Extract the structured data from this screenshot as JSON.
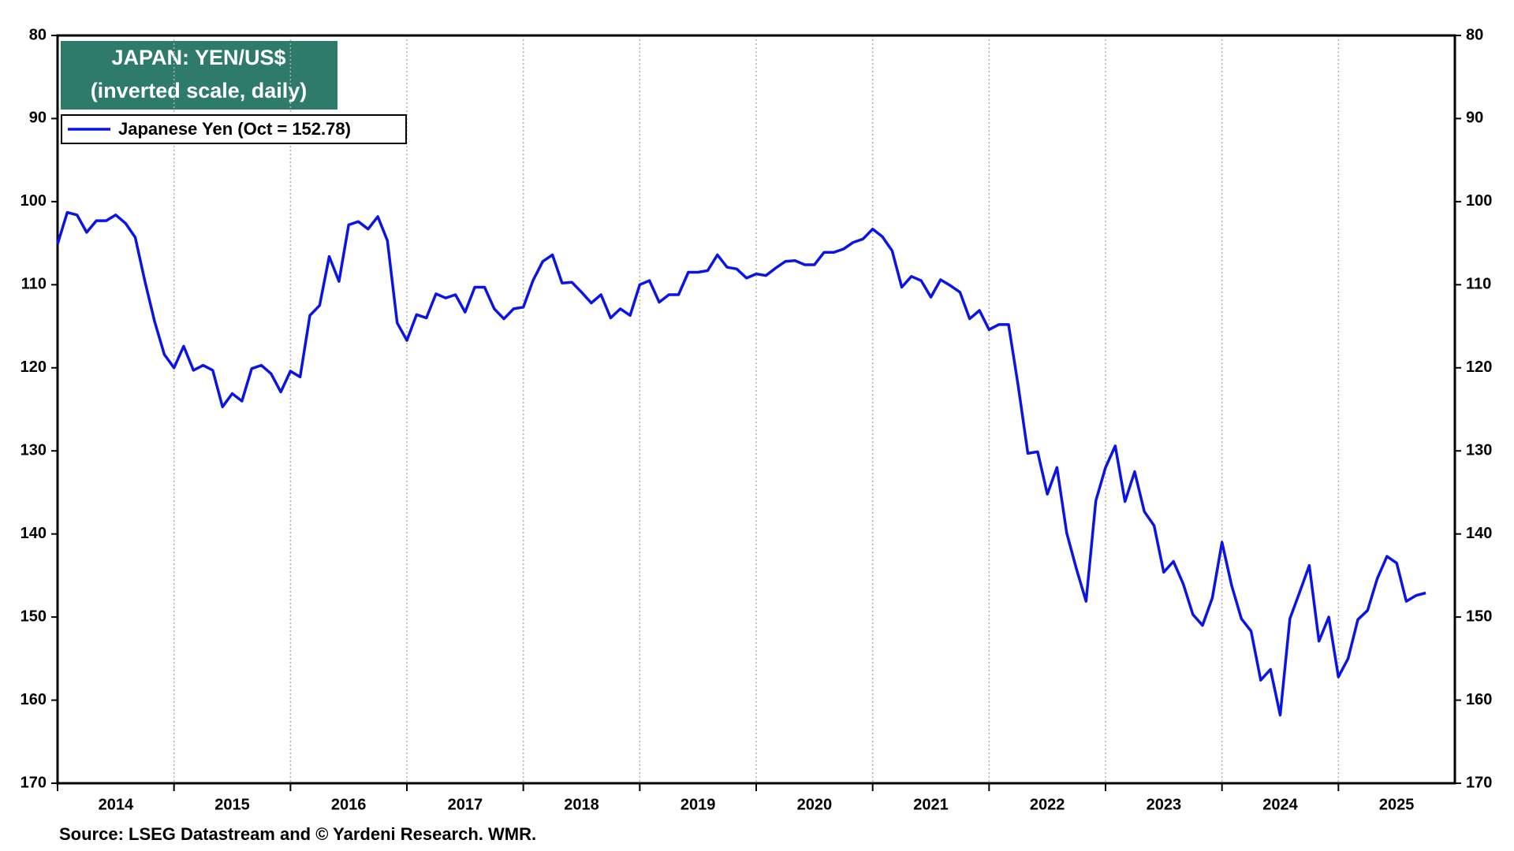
{
  "chart_data": {
    "type": "line",
    "title": "JAPAN: YEN/US$",
    "subtitle": "(inverted scale, daily)",
    "source": "Source: LSEG Datastream and © Yardeni Research. WMR.",
    "title_box_color": "#2e7b6b",
    "x": [
      2014,
      2014.083,
      2014.167,
      2014.25,
      2014.333,
      2014.417,
      2014.5,
      2014.583,
      2014.667,
      2014.75,
      2014.833,
      2014.917,
      2015,
      2015.083,
      2015.167,
      2015.25,
      2015.333,
      2015.417,
      2015.5,
      2015.583,
      2015.667,
      2015.75,
      2015.833,
      2015.917,
      2016,
      2016.083,
      2016.167,
      2016.25,
      2016.333,
      2016.417,
      2016.5,
      2016.583,
      2016.667,
      2016.75,
      2016.833,
      2016.917,
      2017,
      2017.083,
      2017.167,
      2017.25,
      2017.333,
      2017.417,
      2017.5,
      2017.583,
      2017.667,
      2017.75,
      2017.833,
      2017.917,
      2018,
      2018.083,
      2018.167,
      2018.25,
      2018.333,
      2018.417,
      2018.5,
      2018.583,
      2018.667,
      2018.75,
      2018.833,
      2018.917,
      2019,
      2019.083,
      2019.167,
      2019.25,
      2019.333,
      2019.417,
      2019.5,
      2019.583,
      2019.667,
      2019.75,
      2019.833,
      2019.917,
      2020,
      2020.083,
      2020.167,
      2020.25,
      2020.333,
      2020.417,
      2020.5,
      2020.583,
      2020.667,
      2020.75,
      2020.833,
      2020.917,
      2021,
      2021.083,
      2021.167,
      2021.25,
      2021.333,
      2021.417,
      2021.5,
      2021.583,
      2021.667,
      2021.75,
      2021.833,
      2021.917,
      2022,
      2022.083,
      2022.167,
      2022.25,
      2022.333,
      2022.417,
      2022.5,
      2022.583,
      2022.667,
      2022.75,
      2022.833,
      2022.917,
      2023,
      2023.083,
      2023.167,
      2023.25,
      2023.333,
      2023.417,
      2023.5,
      2023.583,
      2023.667,
      2023.75,
      2023.833,
      2023.917,
      2024,
      2024.083,
      2024.167,
      2024.25,
      2024.333,
      2024.417,
      2024.5,
      2024.583,
      2024.667,
      2024.75,
      2024.833,
      2024.917,
      2025,
      2025.083,
      2025.167,
      2025.25,
      2025.333,
      2025.417,
      2025.5,
      2025.583,
      2025.667,
      2025.75
    ],
    "series": [
      {
        "name": "Japanese Yen (Oct = 152.78)",
        "color": "#0a14e6",
        "values": [
          105.1,
          101.3,
          101.6,
          103.7,
          102.3,
          102.3,
          101.6,
          102.6,
          104.3,
          109.6,
          114.4,
          118.4,
          120,
          117.4,
          120.3,
          119.7,
          120.3,
          124.7,
          123.1,
          124,
          120.1,
          119.7,
          120.7,
          122.9,
          120.4,
          121.1,
          113.7,
          112.5,
          106.6,
          109.6,
          102.8,
          102.4,
          103.3,
          101.8,
          104.7,
          114.6,
          116.7,
          113.6,
          114,
          111.1,
          111.6,
          111.2,
          113.3,
          110.3,
          110.3,
          112.9,
          114.1,
          112.9,
          112.7,
          109.5,
          107.2,
          106.4,
          109.8,
          109.7,
          110.9,
          112.2,
          111.2,
          114,
          112.9,
          113.7,
          110,
          109.5,
          112.1,
          111.2,
          111.2,
          108.5,
          108.5,
          108.3,
          106.4,
          107.9,
          108.1,
          109.2,
          108.7,
          108.9,
          108,
          107.2,
          107.1,
          107.6,
          107.6,
          106.1,
          106.1,
          105.7,
          104.9,
          104.5,
          103.3,
          104.2,
          105.9,
          110.3,
          109,
          109.5,
          111.5,
          109.4,
          110.1,
          110.9,
          114.1,
          113.1,
          115.4,
          114.8,
          114.8,
          122.2,
          130.3,
          130.1,
          135.2,
          132,
          139.9,
          144.2,
          148.1,
          136,
          132,
          129.4,
          136.1,
          132.5,
          137.3,
          139,
          144.6,
          143.3,
          146,
          149.7,
          151,
          147.7,
          141,
          146.2,
          150.2,
          151.7,
          157.6,
          156.3,
          161.8,
          150.2,
          147,
          143.8,
          152.9,
          150,
          157.2,
          155,
          150.3,
          149.2,
          145.4,
          142.7,
          143.5,
          148.1,
          147.4,
          147.1
        ]
      }
    ],
    "xlim": [
      2014,
      2026
    ],
    "xticks": [
      {
        "value": 2014.5,
        "label": "2014"
      },
      {
        "value": 2015.5,
        "label": "2015"
      },
      {
        "value": 2016.5,
        "label": "2016"
      },
      {
        "value": 2017.5,
        "label": "2017"
      },
      {
        "value": 2018.5,
        "label": "2018"
      },
      {
        "value": 2019.5,
        "label": "2019"
      },
      {
        "value": 2020.5,
        "label": "2020"
      },
      {
        "value": 2021.5,
        "label": "2021"
      },
      {
        "value": 2022.5,
        "label": "2022"
      },
      {
        "value": 2023.5,
        "label": "2023"
      },
      {
        "value": 2024.5,
        "label": "2024"
      },
      {
        "value": 2025.5,
        "label": "2025"
      }
    ],
    "ylim": [
      80,
      170
    ],
    "yticks": [
      80,
      90,
      100,
      110,
      120,
      130,
      140,
      150,
      160,
      170
    ],
    "y_inverted": true,
    "right_axis_labels": true,
    "xgrid": true,
    "legend": "upper left"
  }
}
